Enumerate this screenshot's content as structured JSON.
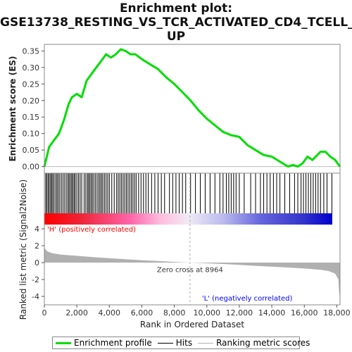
{
  "title_lines": [
    "Enrichment plot:",
    "GSE13738_RESTING_VS_TCR_ACTIVATED_CD4_TCELL_",
    "UP"
  ],
  "legend": {
    "enrichment": "Enrichment profile",
    "hits": "Hits",
    "ranking": "Ranking metric scores"
  },
  "colors": {
    "enrichment": "#00dd00",
    "hits": "#000000",
    "ranking": "#b0b0b0",
    "positive": "#ff0000",
    "negative": "#0000ff",
    "zero_line": "#aaaaaa"
  },
  "chart_data": {
    "type": "line",
    "enrichment": {
      "ylabel": "Enrichment score (ES)",
      "ylim": [
        -0.02,
        0.37
      ],
      "yticks": [
        "0.00",
        "0.05",
        "0.10",
        "0.15",
        "0.20",
        "0.25",
        "0.30",
        "0.35"
      ],
      "x": [
        0,
        100,
        300,
        600,
        900,
        1200,
        1500,
        1700,
        2000,
        2300,
        2600,
        2900,
        3200,
        3500,
        3800,
        4100,
        4400,
        4700,
        5000,
        5300,
        5600,
        6000,
        6500,
        7000,
        7500,
        8000,
        8500,
        9000,
        9500,
        10000,
        10500,
        11000,
        11500,
        12000,
        12500,
        13000,
        13500,
        14000,
        14500,
        15000,
        15300,
        15600,
        15900,
        16200,
        16500,
        16800,
        17000,
        17300,
        17600,
        17900,
        18200
      ],
      "y": [
        0.0,
        0.02,
        0.06,
        0.08,
        0.1,
        0.14,
        0.19,
        0.21,
        0.22,
        0.21,
        0.26,
        0.28,
        0.3,
        0.32,
        0.34,
        0.33,
        0.34,
        0.355,
        0.35,
        0.34,
        0.34,
        0.325,
        0.31,
        0.295,
        0.27,
        0.25,
        0.225,
        0.2,
        0.17,
        0.145,
        0.125,
        0.105,
        0.095,
        0.09,
        0.065,
        0.05,
        0.035,
        0.03,
        0.015,
        0.0,
        0.005,
        0.0,
        0.01,
        0.03,
        0.02,
        0.035,
        0.045,
        0.045,
        0.03,
        0.02,
        0.0
      ]
    },
    "hits_x": [
      80,
      150,
      230,
      300,
      380,
      450,
      520,
      600,
      700,
      780,
      860,
      950,
      1050,
      1150,
      1250,
      1350,
      1450,
      1520,
      1600,
      1680,
      1750,
      1830,
      1900,
      2000,
      2100,
      2200,
      2300,
      2450,
      2550,
      2650,
      2720,
      2800,
      2880,
      2960,
      3050,
      3150,
      3250,
      3350,
      3430,
      3520,
      3600,
      3700,
      3800,
      3900,
      4000,
      4150,
      4300,
      4450,
      4550,
      4650,
      4750,
      4850,
      4950,
      5050,
      5150,
      5250,
      5350,
      5450,
      5550,
      5650,
      5800,
      5950,
      6100,
      6250,
      6400,
      6600,
      6800,
      7000,
      7200,
      7400,
      7700,
      7900,
      8100,
      8300,
      8500,
      8700,
      9000,
      9300,
      9600,
      9900,
      10200,
      10500,
      10800,
      11000,
      11200,
      11350,
      11500,
      11650,
      11800,
      12000,
      12300,
      12700,
      13000,
      13300,
      13500,
      13700,
      13900,
      14100,
      14300,
      14500,
      14800,
      15100,
      15400,
      15600,
      15800,
      15950,
      16100,
      16250,
      16400,
      16550,
      16700,
      16850,
      17000,
      17200,
      17400,
      17700
    ],
    "ranking": {
      "ylabel": "Ranked list metric (Signal2Noise)",
      "ylim": [
        -5,
        4.5
      ],
      "yticks": [
        "-4",
        "-2",
        "0",
        "2",
        "4"
      ],
      "x": [
        0,
        50,
        200,
        500,
        1000,
        2000,
        3000,
        4000,
        5000,
        6000,
        7000,
        8000,
        8964,
        10000,
        11000,
        12000,
        13000,
        14000,
        15000,
        16000,
        17000,
        17500,
        17900,
        18100,
        18150,
        18200
      ],
      "y": [
        2.0,
        1.6,
        1.3,
        1.1,
        0.95,
        0.8,
        0.65,
        0.52,
        0.4,
        0.28,
        0.18,
        0.08,
        0.0,
        -0.08,
        -0.17,
        -0.27,
        -0.38,
        -0.48,
        -0.58,
        -0.7,
        -0.85,
        -1.0,
        -1.3,
        -2.0,
        -3.5,
        -4.4
      ]
    },
    "xlabel": "Rank in Ordered Dataset",
    "xlim": [
      0,
      18200
    ],
    "xticks": [
      "0",
      "2,000",
      "4,000",
      "6,000",
      "8,000",
      "10,000",
      "12,000",
      "14,000",
      "16,000",
      "18,000"
    ],
    "zero_cross_x": 8964,
    "zero_cross_label": "Zero cross at 8964",
    "positive_label": "'H' (positively correlated)",
    "negative_label": "'L' (negatively correlated)"
  }
}
